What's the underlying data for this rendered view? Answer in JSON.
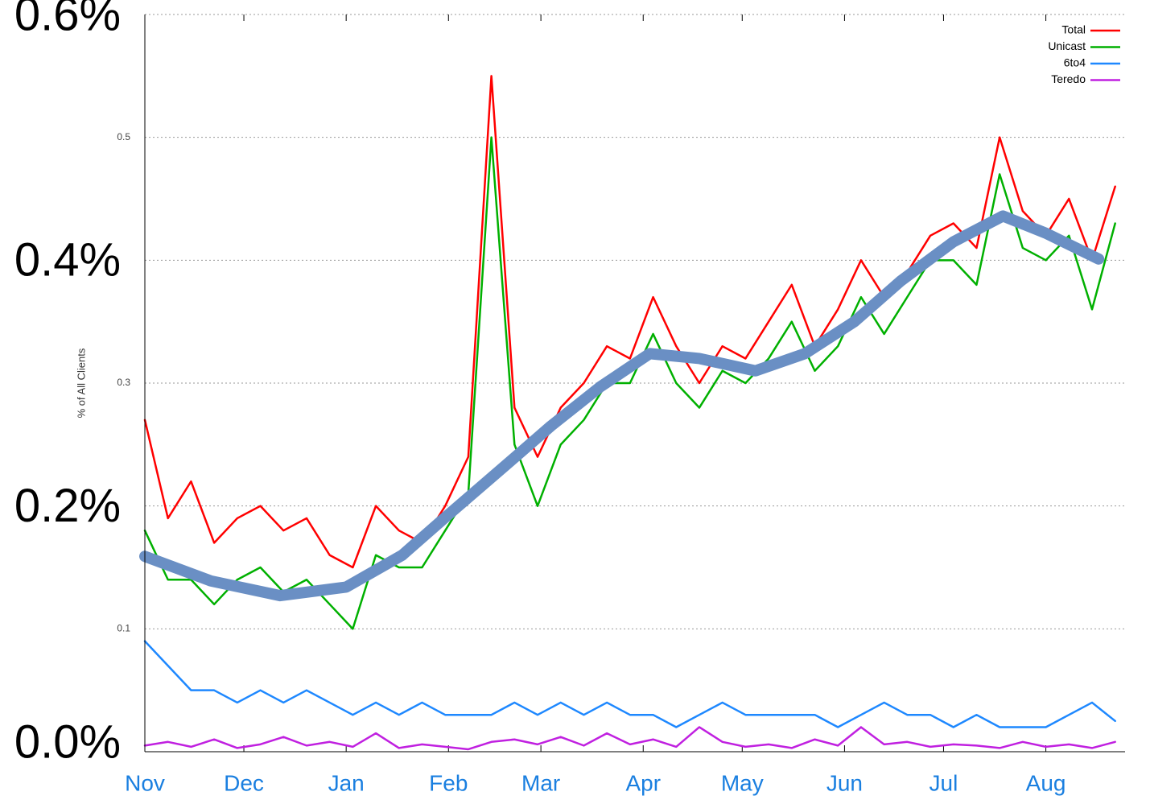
{
  "chart_data": {
    "type": "line",
    "y_label": "% of All Clients",
    "xlim": [
      0,
      297
    ],
    "xticks": [
      {
        "value": 0,
        "label": "Nov"
      },
      {
        "value": 30,
        "label": "Dec"
      },
      {
        "value": 61,
        "label": "Jan"
      },
      {
        "value": 92,
        "label": "Feb"
      },
      {
        "value": 120,
        "label": "Mar"
      },
      {
        "value": 151,
        "label": "Apr"
      },
      {
        "value": 181,
        "label": "May"
      },
      {
        "value": 212,
        "label": "Jun"
      },
      {
        "value": 242,
        "label": "Jul"
      },
      {
        "value": 273,
        "label": "Aug"
      }
    ],
    "ylim": [
      0,
      0.6
    ],
    "yticks": [
      0.1,
      0.3,
      0.5
    ],
    "yticks_overlay": [
      {
        "value": 0,
        "label": "0.0%"
      },
      {
        "value": 0.2,
        "label": "0.2%"
      },
      {
        "value": 0.4,
        "label": "0.4%"
      },
      {
        "value": 0.6,
        "label": "0.6%"
      }
    ],
    "grid": true,
    "legend": "upper right",
    "x": [
      0,
      7,
      14,
      21,
      28,
      35,
      42,
      49,
      56,
      63,
      70,
      77,
      84,
      91,
      98,
      105,
      112,
      119,
      126,
      133,
      140,
      147,
      154,
      161,
      168,
      175,
      182,
      189,
      196,
      203,
      210,
      217,
      224,
      231,
      238,
      245,
      252,
      259,
      266,
      273,
      280,
      287,
      294
    ],
    "series": [
      {
        "name": "Total",
        "color": "#ff0000",
        "values": [
          0.27,
          0.19,
          0.22,
          0.17,
          0.19,
          0.2,
          0.18,
          0.19,
          0.16,
          0.15,
          0.2,
          0.18,
          0.17,
          0.2,
          0.24,
          0.55,
          0.28,
          0.24,
          0.28,
          0.3,
          0.33,
          0.32,
          0.37,
          0.33,
          0.3,
          0.33,
          0.32,
          0.35,
          0.38,
          0.33,
          0.36,
          0.4,
          0.37,
          0.39,
          0.42,
          0.43,
          0.41,
          0.5,
          0.44,
          0.42,
          0.45,
          0.4,
          0.46
        ]
      },
      {
        "name": "Unicast",
        "color": "#00b000",
        "values": [
          0.18,
          0.14,
          0.14,
          0.12,
          0.14,
          0.15,
          0.13,
          0.14,
          0.12,
          0.1,
          0.16,
          0.15,
          0.15,
          0.18,
          0.21,
          0.5,
          0.25,
          0.2,
          0.25,
          0.27,
          0.3,
          0.3,
          0.34,
          0.3,
          0.28,
          0.31,
          0.3,
          0.32,
          0.35,
          0.31,
          0.33,
          0.37,
          0.34,
          0.37,
          0.4,
          0.4,
          0.38,
          0.47,
          0.41,
          0.4,
          0.42,
          0.36,
          0.43
        ]
      },
      {
        "name": "6to4",
        "color": "#1e88ff",
        "values": [
          0.09,
          0.07,
          0.05,
          0.05,
          0.04,
          0.05,
          0.04,
          0.05,
          0.04,
          0.03,
          0.04,
          0.03,
          0.04,
          0.03,
          0.03,
          0.03,
          0.04,
          0.03,
          0.04,
          0.03,
          0.04,
          0.03,
          0.03,
          0.02,
          0.03,
          0.04,
          0.03,
          0.03,
          0.03,
          0.03,
          0.02,
          0.03,
          0.04,
          0.03,
          0.03,
          0.02,
          0.03,
          0.02,
          0.02,
          0.02,
          0.03,
          0.04,
          0.025
        ]
      },
      {
        "name": "Teredo",
        "color": "#c020e0",
        "values": [
          0.005,
          0.008,
          0.004,
          0.01,
          0.003,
          0.006,
          0.012,
          0.005,
          0.008,
          0.004,
          0.015,
          0.003,
          0.006,
          0.004,
          0.002,
          0.008,
          0.01,
          0.006,
          0.012,
          0.005,
          0.015,
          0.006,
          0.01,
          0.004,
          0.02,
          0.008,
          0.004,
          0.006,
          0.003,
          0.01,
          0.005,
          0.02,
          0.006,
          0.008,
          0.004,
          0.006,
          0.005,
          0.003,
          0.008,
          0.004,
          0.006,
          0.003,
          0.008
        ]
      }
    ],
    "trend": {
      "color": "#6a8fc4",
      "x": [
        0,
        20,
        41,
        61,
        78,
        92,
        108,
        123,
        138,
        153,
        168,
        185,
        200,
        215,
        229,
        245,
        260,
        273,
        289
      ],
      "values": [
        0.159,
        0.139,
        0.127,
        0.134,
        0.16,
        0.193,
        0.23,
        0.265,
        0.297,
        0.324,
        0.32,
        0.31,
        0.324,
        0.35,
        0.383,
        0.415,
        0.436,
        0.422,
        0.401
      ]
    }
  }
}
